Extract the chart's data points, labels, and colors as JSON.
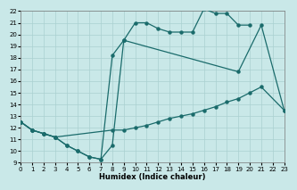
{
  "xlabel": "Humidex (Indice chaleur)",
  "xlim": [
    0,
    23
  ],
  "ylim": [
    9,
    22
  ],
  "xticks": [
    0,
    1,
    2,
    3,
    4,
    5,
    6,
    7,
    8,
    9,
    10,
    11,
    12,
    13,
    14,
    15,
    16,
    17,
    18,
    19,
    20,
    21,
    22,
    23
  ],
  "yticks": [
    9,
    10,
    11,
    12,
    13,
    14,
    15,
    16,
    17,
    18,
    19,
    20,
    21,
    22
  ],
  "bg_color": "#c9e8e8",
  "grid_color": "#aad0d0",
  "line_color": "#1a6b6b",
  "curve1_x": [
    0,
    1,
    2,
    3,
    4,
    5,
    6,
    7,
    8,
    9,
    10,
    11,
    12,
    13,
    14,
    15,
    16,
    17,
    18,
    19,
    20
  ],
  "curve1_y": [
    12.5,
    11.8,
    11.5,
    11.2,
    10.5,
    10.0,
    9.5,
    9.3,
    10.5,
    19.5,
    21.0,
    21.0,
    20.5,
    20.2,
    20.2,
    20.2,
    22.2,
    21.8,
    21.8,
    20.8,
    20.8
  ],
  "curve2_x": [
    0,
    1,
    2,
    3,
    4,
    5,
    6,
    7,
    8,
    9,
    19,
    21,
    23
  ],
  "curve2_y": [
    12.5,
    11.8,
    11.5,
    11.2,
    10.5,
    10.0,
    9.5,
    9.3,
    18.2,
    19.5,
    16.8,
    20.8,
    13.5
  ],
  "curve3_x": [
    0,
    1,
    2,
    3,
    8,
    9,
    10,
    11,
    12,
    13,
    14,
    15,
    16,
    17,
    18,
    19,
    20,
    21,
    23
  ],
  "curve3_y": [
    12.5,
    11.8,
    11.5,
    11.2,
    11.8,
    11.8,
    12.0,
    12.2,
    12.5,
    12.8,
    13.0,
    13.2,
    13.5,
    13.8,
    14.2,
    14.5,
    15.0,
    15.5,
    13.5
  ]
}
